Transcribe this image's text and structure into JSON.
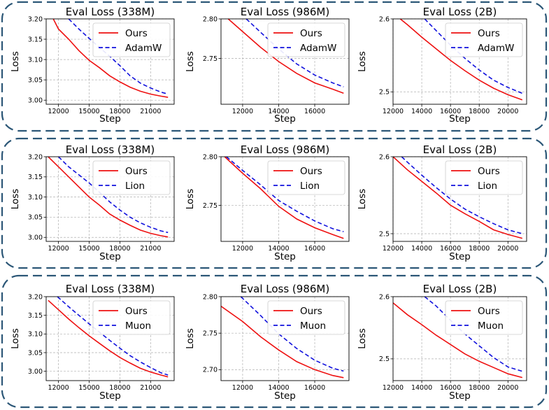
{
  "colors": {
    "frame": "#2c5777",
    "ours": "#ee1111",
    "baseline": "#1111dd",
    "grid": "#b0b0b0"
  },
  "chart_data": [
    {
      "type": "line",
      "group": "AdamW",
      "title": "Eval Loss (338M)",
      "xlabel": "Step",
      "ylabel": "Loss",
      "xlim": [
        10800,
        23300
      ],
      "ylim": [
        2.99,
        3.2
      ],
      "xticks": [
        12000,
        15000,
        18000,
        21000
      ],
      "yticks": [
        3.0,
        3.05,
        3.1,
        3.15,
        3.2
      ],
      "ytick_decimals": 2,
      "legend": "top-right",
      "series": [
        {
          "name": "Ours",
          "role": "ours",
          "x": [
            11500,
            12000,
            13000,
            14000,
            15000,
            16000,
            17000,
            18000,
            19000,
            20000,
            21000,
            22000,
            22700
          ],
          "y": [
            3.2,
            3.175,
            3.15,
            3.122,
            3.098,
            3.08,
            3.06,
            3.045,
            3.032,
            3.022,
            3.015,
            3.01,
            3.007
          ]
        },
        {
          "name": "AdamW",
          "role": "baseline",
          "x": [
            13000,
            14000,
            15000,
            16000,
            17000,
            18000,
            19000,
            20000,
            21000,
            22000,
            22700
          ],
          "y": [
            3.2,
            3.175,
            3.152,
            3.13,
            3.108,
            3.085,
            3.06,
            3.042,
            3.03,
            3.02,
            3.015
          ]
        }
      ]
    },
    {
      "type": "line",
      "group": "AdamW",
      "title": "Eval Loss (986M)",
      "xlabel": "Step",
      "ylabel": "Loss",
      "xlim": [
        10800,
        17900
      ],
      "ylim": [
        2.692,
        2.8
      ],
      "xticks": [
        12000,
        14000,
        16000
      ],
      "yticks": [
        2.75,
        2.8
      ],
      "ytick_decimals": 2,
      "legend": "top-right",
      "series": [
        {
          "name": "Ours",
          "role": "ours",
          "x": [
            11200,
            12000,
            13000,
            14000,
            15000,
            16000,
            17000,
            17600
          ],
          "y": [
            2.8,
            2.784,
            2.764,
            2.746,
            2.731,
            2.719,
            2.711,
            2.706
          ]
        },
        {
          "name": "AdamW",
          "role": "baseline",
          "x": [
            12200,
            13000,
            14000,
            15000,
            16000,
            17000,
            17600
          ],
          "y": [
            2.8,
            2.783,
            2.762,
            2.743,
            2.729,
            2.719,
            2.714
          ]
        }
      ]
    },
    {
      "type": "line",
      "group": "AdamW",
      "title": "Eval Loss (2B)",
      "xlabel": "Step",
      "ylabel": "Loss",
      "xlim": [
        12000,
        21300
      ],
      "ylim": [
        2.483,
        2.6
      ],
      "xticks": [
        12000,
        14000,
        16000,
        18000,
        20000
      ],
      "yticks": [
        2.5,
        2.6
      ],
      "ytick_decimals": 1,
      "legend": "top-right",
      "series": [
        {
          "name": "Ours",
          "role": "ours",
          "x": [
            12500,
            13000,
            14000,
            15000,
            16000,
            17000,
            18000,
            19000,
            20000,
            21000
          ],
          "y": [
            2.6,
            2.592,
            2.575,
            2.559,
            2.543,
            2.529,
            2.516,
            2.505,
            2.496,
            2.489
          ]
        },
        {
          "name": "AdamW",
          "role": "baseline",
          "x": [
            14200,
            15000,
            16000,
            17000,
            18000,
            19000,
            20000,
            21000
          ],
          "y": [
            2.6,
            2.584,
            2.564,
            2.546,
            2.53,
            2.516,
            2.506,
            2.498
          ]
        }
      ]
    },
    {
      "type": "line",
      "group": "Lion",
      "title": "Eval Loss (338M)",
      "xlabel": "Step",
      "ylabel": "Loss",
      "xlim": [
        10800,
        23300
      ],
      "ylim": [
        2.99,
        3.2
      ],
      "xticks": [
        12000,
        15000,
        18000,
        21000
      ],
      "yticks": [
        3.0,
        3.05,
        3.1,
        3.15,
        3.2
      ],
      "ytick_decimals": 2,
      "legend": "top-right",
      "series": [
        {
          "name": "Ours",
          "role": "ours",
          "x": [
            11000,
            12000,
            13000,
            14000,
            15000,
            16000,
            17000,
            18000,
            19000,
            20000,
            21000,
            22000,
            22700
          ],
          "y": [
            3.2,
            3.175,
            3.15,
            3.125,
            3.1,
            3.08,
            3.058,
            3.043,
            3.03,
            3.018,
            3.01,
            3.004,
            3.001
          ]
        },
        {
          "name": "Lion",
          "role": "baseline",
          "x": [
            12000,
            13000,
            14000,
            15000,
            16000,
            17000,
            18000,
            19000,
            20000,
            21000,
            22000,
            22700
          ],
          "y": [
            3.2,
            3.175,
            3.155,
            3.135,
            3.112,
            3.088,
            3.068,
            3.05,
            3.036,
            3.025,
            3.016,
            3.012
          ]
        }
      ]
    },
    {
      "type": "line",
      "group": "Lion",
      "title": "Eval Loss (986M)",
      "xlabel": "Step",
      "ylabel": "Loss",
      "xlim": [
        10800,
        17900
      ],
      "ylim": [
        2.713,
        2.8
      ],
      "xticks": [
        12000,
        14000,
        16000
      ],
      "yticks": [
        2.75,
        2.8
      ],
      "ytick_decimals": 2,
      "legend": "top-right",
      "series": [
        {
          "name": "Ours",
          "role": "ours",
          "x": [
            11000,
            12000,
            13000,
            14000,
            15000,
            16000,
            17000,
            17600
          ],
          "y": [
            2.8,
            2.783,
            2.767,
            2.749,
            2.736,
            2.727,
            2.72,
            2.716
          ]
        },
        {
          "name": "Lion",
          "role": "baseline",
          "x": [
            11100,
            12000,
            13000,
            14000,
            15000,
            16000,
            17000,
            17600
          ],
          "y": [
            2.8,
            2.786,
            2.771,
            2.755,
            2.744,
            2.734,
            2.726,
            2.723
          ]
        }
      ]
    },
    {
      "type": "line",
      "group": "Lion",
      "title": "Eval Loss (2B)",
      "xlabel": "Step",
      "ylabel": "Loss",
      "xlim": [
        12000,
        21300
      ],
      "ylim": [
        2.49,
        2.6
      ],
      "xticks": [
        12000,
        14000,
        16000,
        18000,
        20000
      ],
      "yticks": [
        2.5,
        2.6
      ],
      "ytick_decimals": 1,
      "legend": "top-right",
      "series": [
        {
          "name": "Ours",
          "role": "ours",
          "x": [
            12000,
            13000,
            14000,
            15000,
            16000,
            17000,
            18000,
            19000,
            20000,
            21000
          ],
          "y": [
            2.6,
            2.583,
            2.568,
            2.553,
            2.537,
            2.526,
            2.516,
            2.505,
            2.499,
            2.494
          ]
        },
        {
          "name": "Lion",
          "role": "baseline",
          "x": [
            12600,
            13000,
            14000,
            15000,
            16000,
            17000,
            18000,
            19000,
            20000,
            21000
          ],
          "y": [
            2.6,
            2.593,
            2.576,
            2.56,
            2.545,
            2.532,
            2.522,
            2.513,
            2.505,
            2.5
          ]
        }
      ]
    },
    {
      "type": "line",
      "group": "Muon",
      "title": "Eval Loss (338M)",
      "xlabel": "Step",
      "ylabel": "Loss",
      "xlim": [
        10800,
        23300
      ],
      "ylim": [
        2.975,
        3.2
      ],
      "xticks": [
        12000,
        15000,
        18000,
        21000
      ],
      "yticks": [
        3.0,
        3.05,
        3.1,
        3.15,
        3.2
      ],
      "ytick_decimals": 2,
      "legend": "top-right",
      "series": [
        {
          "name": "Ours",
          "role": "ours",
          "x": [
            11000,
            12000,
            13000,
            14000,
            15000,
            16000,
            17000,
            18000,
            19000,
            20000,
            21000,
            22000,
            22700
          ],
          "y": [
            3.19,
            3.165,
            3.14,
            3.117,
            3.095,
            3.075,
            3.055,
            3.037,
            3.022,
            3.008,
            2.998,
            2.99,
            2.985
          ]
        },
        {
          "name": "Muon",
          "role": "baseline",
          "x": [
            11900,
            13000,
            14000,
            15000,
            16000,
            17000,
            18000,
            19000,
            20000,
            21000,
            22000,
            22700
          ],
          "y": [
            3.2,
            3.173,
            3.15,
            3.127,
            3.105,
            3.083,
            3.062,
            3.042,
            3.025,
            3.01,
            2.996,
            2.99
          ]
        }
      ]
    },
    {
      "type": "line",
      "group": "Muon",
      "title": "Eval Loss (986M)",
      "xlabel": "Step",
      "ylabel": "Loss",
      "xlim": [
        10800,
        17900
      ],
      "ylim": [
        2.685,
        2.8
      ],
      "xticks": [
        12000,
        14000,
        16000
      ],
      "yticks": [
        2.7,
        2.75,
        2.8
      ],
      "ytick_decimals": 2,
      "legend": "top-right",
      "series": [
        {
          "name": "Ours",
          "role": "ours",
          "x": [
            10800,
            12000,
            13000,
            14000,
            15000,
            16000,
            17000,
            17600
          ],
          "y": [
            2.787,
            2.766,
            2.745,
            2.727,
            2.711,
            2.7,
            2.692,
            2.689
          ]
        },
        {
          "name": "Muon",
          "role": "baseline",
          "x": [
            11900,
            13000,
            14000,
            15000,
            16000,
            17000,
            17600
          ],
          "y": [
            2.8,
            2.774,
            2.749,
            2.729,
            2.713,
            2.702,
            2.698
          ]
        }
      ]
    },
    {
      "type": "line",
      "group": "Muon",
      "title": "Eval Loss (2B)",
      "xlabel": "Step",
      "ylabel": "Loss",
      "xlim": [
        12000,
        21300
      ],
      "ylim": [
        2.465,
        2.6
      ],
      "xticks": [
        12000,
        14000,
        16000,
        18000,
        20000
      ],
      "yticks": [
        2.5,
        2.6
      ],
      "ytick_decimals": 1,
      "legend": "top-right",
      "series": [
        {
          "name": "Ours",
          "role": "ours",
          "x": [
            12000,
            13000,
            14000,
            15000,
            16000,
            17000,
            18000,
            19000,
            20000,
            21000
          ],
          "y": [
            2.59,
            2.571,
            2.555,
            2.538,
            2.523,
            2.508,
            2.496,
            2.486,
            2.476,
            2.47
          ]
        },
        {
          "name": "Muon",
          "role": "baseline",
          "x": [
            14200,
            15000,
            16000,
            17000,
            18000,
            19000,
            20000,
            21000
          ],
          "y": [
            2.6,
            2.585,
            2.562,
            2.54,
            2.521,
            2.502,
            2.487,
            2.48
          ]
        }
      ]
    }
  ]
}
